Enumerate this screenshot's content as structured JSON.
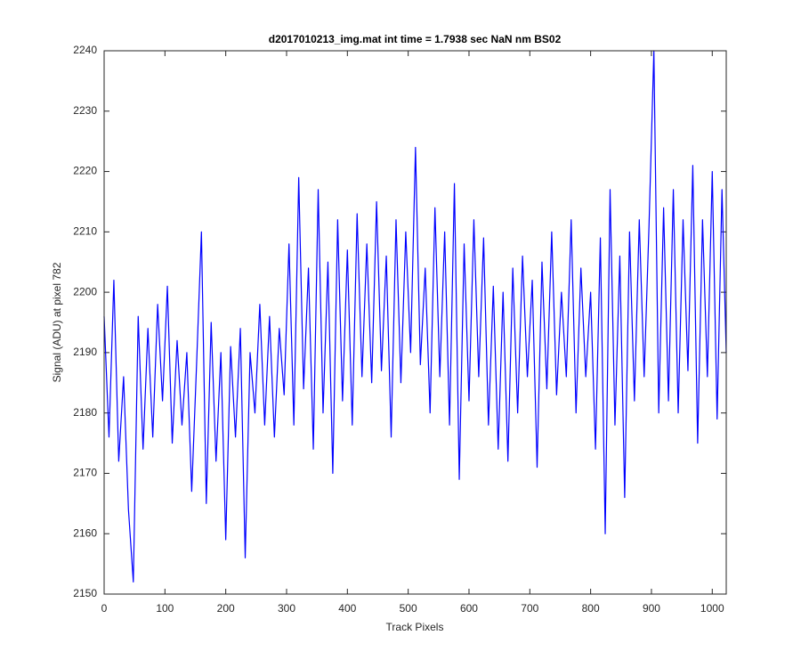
{
  "chart_data": {
    "type": "line",
    "title": "d2017010213_img.mat int time = 1.7938 sec  NaN nm BS02",
    "x_label": "Track Pixels",
    "y_label": "Signal (ADU) at pixel 782",
    "xlim": [
      0,
      1023
    ],
    "ylim": [
      2150,
      2240
    ],
    "xticks": [
      0,
      100,
      200,
      300,
      400,
      500,
      600,
      700,
      800,
      900,
      1000
    ],
    "yticks": [
      2150,
      2160,
      2170,
      2180,
      2190,
      2200,
      2210,
      2220,
      2230,
      2240
    ],
    "x": [
      0,
      8,
      16,
      24,
      32,
      40,
      48,
      56,
      64,
      72,
      80,
      88,
      96,
      104,
      112,
      120,
      128,
      136,
      144,
      152,
      160,
      168,
      176,
      184,
      192,
      200,
      208,
      216,
      224,
      232,
      240,
      248,
      256,
      264,
      272,
      280,
      288,
      296,
      304,
      312,
      320,
      328,
      336,
      344,
      352,
      360,
      368,
      376,
      384,
      392,
      400,
      408,
      416,
      424,
      432,
      440,
      448,
      456,
      464,
      472,
      480,
      488,
      496,
      504,
      512,
      520,
      528,
      536,
      544,
      552,
      560,
      568,
      576,
      584,
      592,
      600,
      608,
      616,
      624,
      632,
      640,
      648,
      656,
      664,
      672,
      680,
      688,
      696,
      704,
      712,
      720,
      728,
      736,
      744,
      752,
      760,
      768,
      776,
      784,
      792,
      800,
      808,
      816,
      824,
      832,
      840,
      848,
      856,
      864,
      872,
      880,
      888,
      896,
      904,
      912,
      920,
      928,
      936,
      944,
      952,
      960,
      968,
      976,
      984,
      992,
      1000,
      1008,
      1016,
      1023
    ],
    "series": [
      {
        "color": "#0000ff",
        "values": [
          2196,
          2176,
          2202,
          2172,
          2186,
          2164,
          2152,
          2196,
          2174,
          2194,
          2176,
          2198,
          2182,
          2201,
          2175,
          2192,
          2178,
          2190,
          2167,
          2188,
          2210,
          2165,
          2195,
          2172,
          2190,
          2159,
          2191,
          2176,
          2194,
          2156,
          2190,
          2180,
          2198,
          2178,
          2196,
          2176,
          2194,
          2183,
          2208,
          2178,
          2219,
          2184,
          2204,
          2174,
          2217,
          2180,
          2205,
          2170,
          2212,
          2182,
          2207,
          2178,
          2213,
          2186,
          2208,
          2185,
          2215,
          2187,
          2206,
          2176,
          2212,
          2185,
          2210,
          2190,
          2224,
          2188,
          2204,
          2180,
          2214,
          2186,
          2210,
          2178,
          2218,
          2169,
          2208,
          2182,
          2212,
          2186,
          2209,
          2178,
          2201,
          2174,
          2200,
          2172,
          2204,
          2180,
          2206,
          2186,
          2202,
          2171,
          2205,
          2184,
          2210,
          2183,
          2200,
          2186,
          2212,
          2180,
          2204,
          2186,
          2200,
          2174,
          2209,
          2160,
          2217,
          2178,
          2206,
          2166,
          2210,
          2182,
          2212,
          2186,
          2211,
          2240,
          2180,
          2214,
          2182,
          2217,
          2180,
          2212,
          2187,
          2221,
          2175,
          2212,
          2186,
          2220,
          2179,
          2217,
          2190
        ]
      }
    ]
  }
}
